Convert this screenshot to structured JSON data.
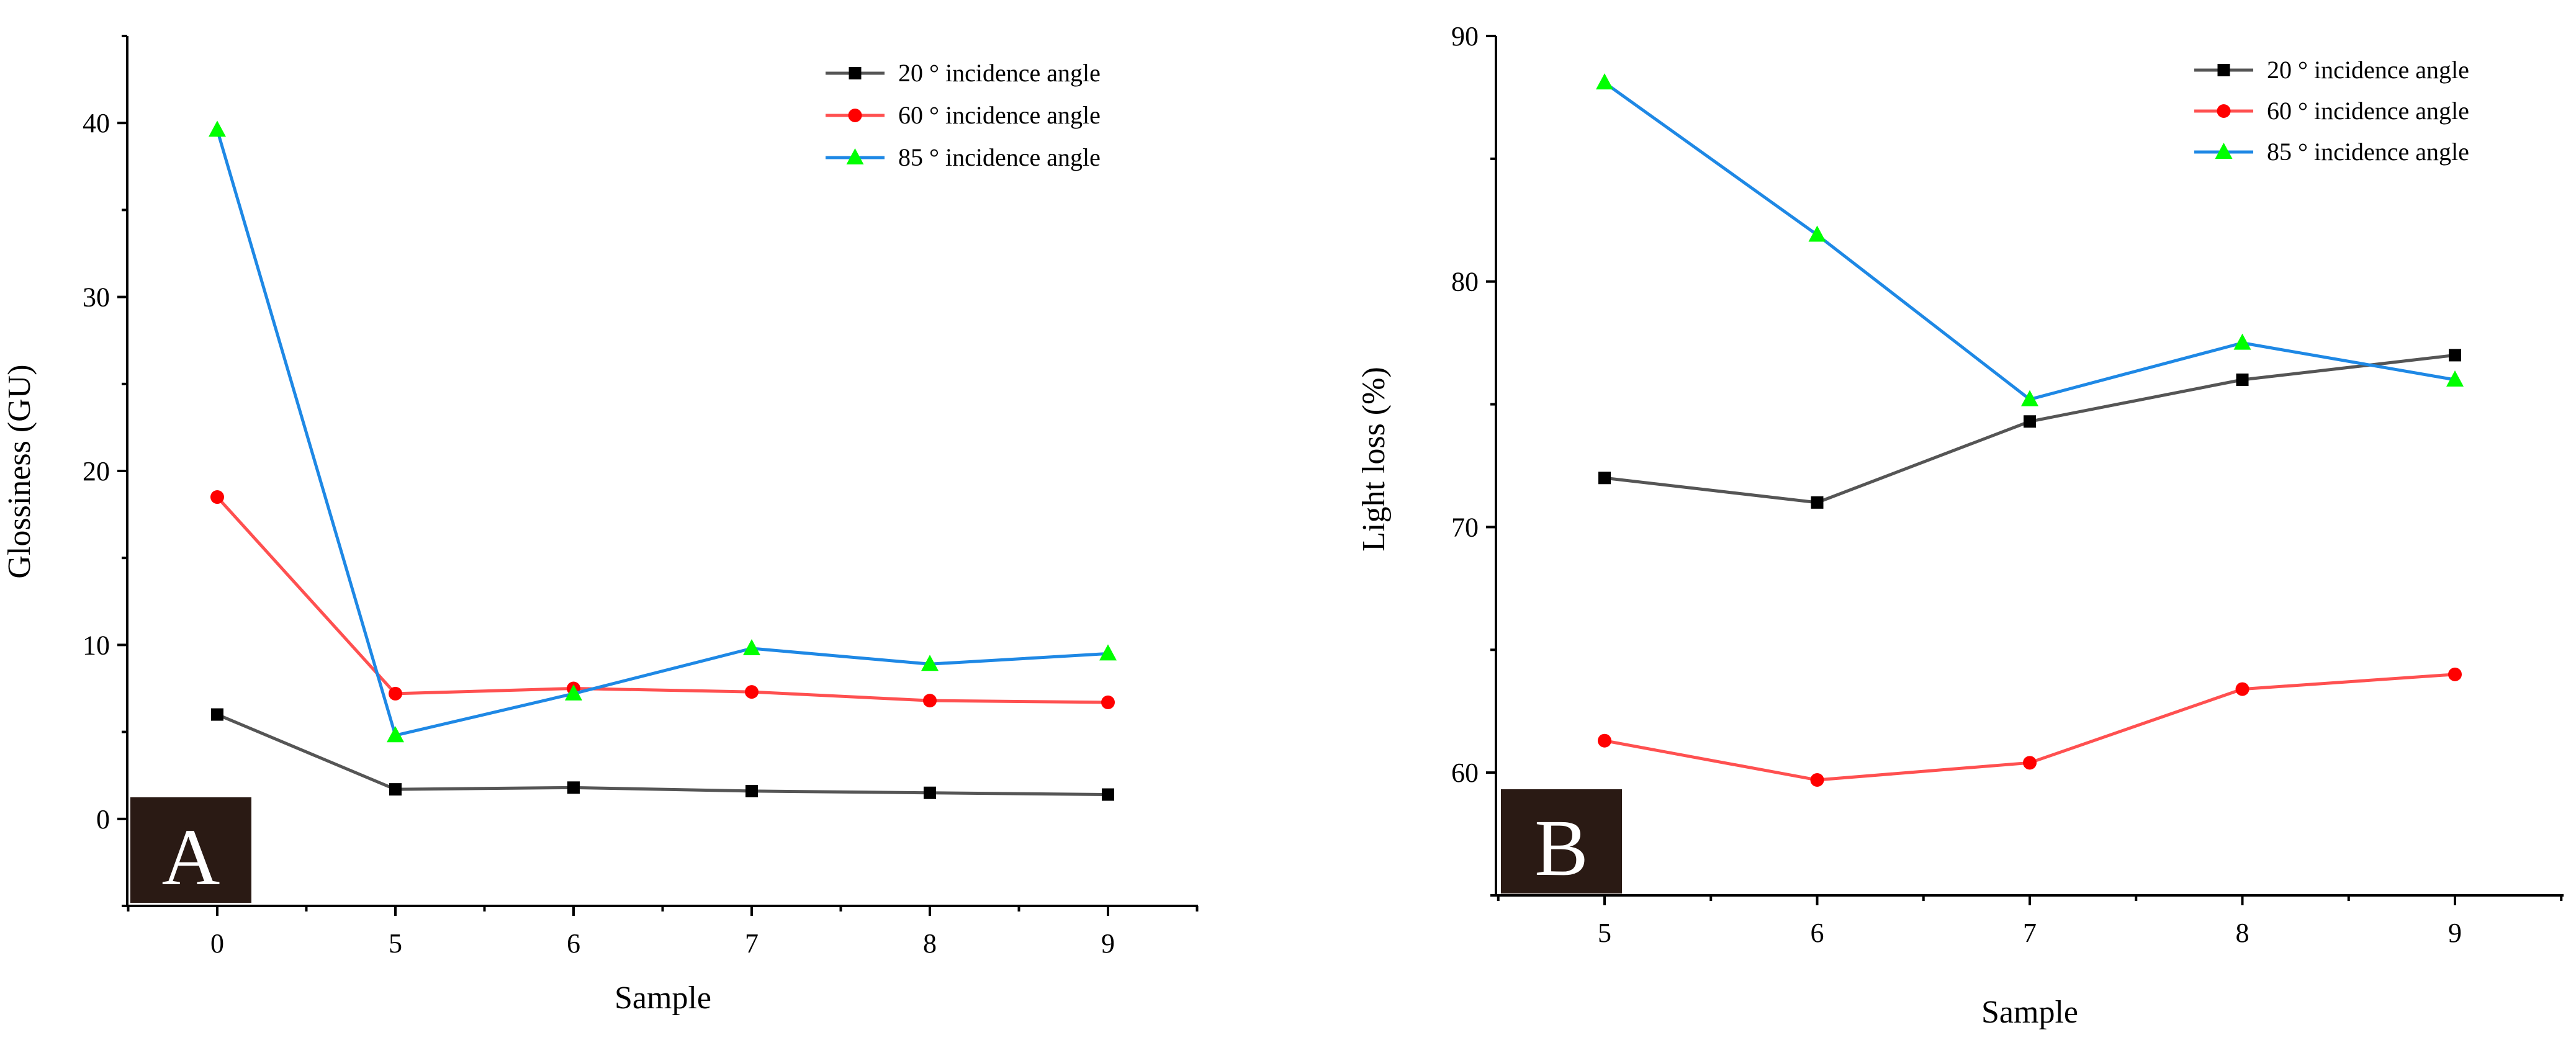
{
  "chart_data": [
    {
      "type": "line",
      "panel_label": "A",
      "title": "",
      "xlabel": "Sample",
      "ylabel": "Glossiness (GU)",
      "categories": [
        "0",
        "5",
        "6",
        "7",
        "8",
        "9"
      ],
      "ylim": [
        -5,
        45
      ],
      "yticks": [
        0,
        10,
        20,
        30,
        40
      ],
      "grid": false,
      "legend_position": "top-right",
      "series": [
        {
          "name": "20 ° incidence angle",
          "line_color": "#555555",
          "marker_color": "#000000",
          "marker": "square",
          "values": [
            6.0,
            1.7,
            1.8,
            1.6,
            1.5,
            1.4
          ]
        },
        {
          "name": "60 ° incidence angle",
          "line_color": "#ff5050",
          "marker_color": "#ff0000",
          "marker": "circle",
          "values": [
            18.5,
            7.2,
            7.5,
            7.3,
            6.8,
            6.7
          ]
        },
        {
          "name": "85 ° incidence angle",
          "line_color": "#1e88e5",
          "marker_color": "#00ff00",
          "marker": "triangle",
          "values": [
            39.6,
            4.8,
            7.2,
            9.8,
            8.9,
            9.5
          ]
        }
      ]
    },
    {
      "type": "line",
      "panel_label": "B",
      "title": "",
      "xlabel": "Sample",
      "ylabel": "Light loss (%)",
      "categories": [
        "5",
        "6",
        "7",
        "8",
        "9"
      ],
      "ylim": [
        55,
        90
      ],
      "yticks": [
        60,
        70,
        80,
        90
      ],
      "grid": false,
      "legend_position": "top-right",
      "series": [
        {
          "name": "20 ° incidence angle",
          "line_color": "#555555",
          "marker_color": "#000000",
          "marker": "square",
          "values": [
            72.0,
            71.0,
            74.3,
            76.0,
            77.0
          ]
        },
        {
          "name": "60 ° incidence angle",
          "line_color": "#ff5050",
          "marker_color": "#ff0000",
          "marker": "circle",
          "values": [
            61.3,
            59.7,
            60.4,
            63.4,
            64.0
          ]
        },
        {
          "name": "85 ° incidence angle",
          "line_color": "#1e88e5",
          "marker_color": "#00ff00",
          "marker": "triangle",
          "values": [
            88.1,
            81.9,
            75.2,
            77.5,
            76.0
          ]
        }
      ]
    }
  ]
}
